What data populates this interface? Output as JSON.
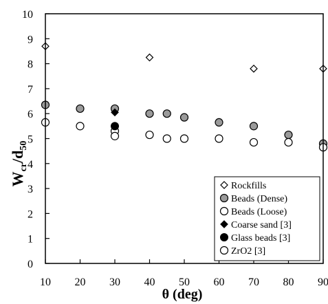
{
  "chart_data": {
    "type": "scatter",
    "title": "",
    "xlabel": "θ (deg)",
    "ylabel_main": "W",
    "ylabel_sub1": "cr",
    "ylabel_mid": "/d",
    "ylabel_sub2": "50",
    "xlim": [
      10,
      90
    ],
    "ylim": [
      0,
      10
    ],
    "xticks": [
      10,
      20,
      30,
      40,
      50,
      60,
      70,
      80,
      90
    ],
    "yticks": [
      0,
      1,
      2,
      3,
      4,
      5,
      6,
      7,
      8,
      9,
      10
    ],
    "grid": false,
    "legend_position": "bottom-right",
    "series": [
      {
        "name": "Rockfills",
        "marker": "diamond-open",
        "points": [
          [
            10,
            8.7
          ],
          [
            40,
            8.25
          ],
          [
            70,
            7.8
          ],
          [
            90,
            7.8
          ]
        ]
      },
      {
        "name": "Beads (Dense)",
        "marker": "circle-gray",
        "points": [
          [
            10,
            6.35
          ],
          [
            20,
            6.2
          ],
          [
            30,
            6.2
          ],
          [
            40,
            6.0
          ],
          [
            45,
            6.0
          ],
          [
            50,
            5.85
          ],
          [
            60,
            5.65
          ],
          [
            70,
            5.5
          ],
          [
            80,
            5.15
          ],
          [
            90,
            4.8
          ]
        ]
      },
      {
        "name": "Beads (Loose)",
        "marker": "circle-open-bold",
        "points": [
          [
            10,
            5.65
          ],
          [
            20,
            5.5
          ],
          [
            30,
            5.3
          ],
          [
            40,
            5.15
          ],
          [
            45,
            5.0
          ],
          [
            50,
            5.0
          ],
          [
            60,
            5.0
          ],
          [
            70,
            4.85
          ],
          [
            80,
            4.85
          ],
          [
            90,
            4.65
          ]
        ]
      },
      {
        "name": "Coarse sand [3]",
        "marker": "diamond-filled",
        "points": [
          [
            30,
            6.05
          ]
        ]
      },
      {
        "name": "Glass beads [3]",
        "marker": "circle-filled",
        "points": [
          [
            30,
            5.5
          ]
        ]
      },
      {
        "name": "ZrO2 [3]",
        "marker": "circle-open",
        "points": [
          [
            30,
            5.1
          ]
        ]
      }
    ],
    "colors": {
      "axis": "#000000",
      "gray_fill": "#9a9a9a",
      "black": "#000000",
      "white": "#ffffff"
    }
  }
}
